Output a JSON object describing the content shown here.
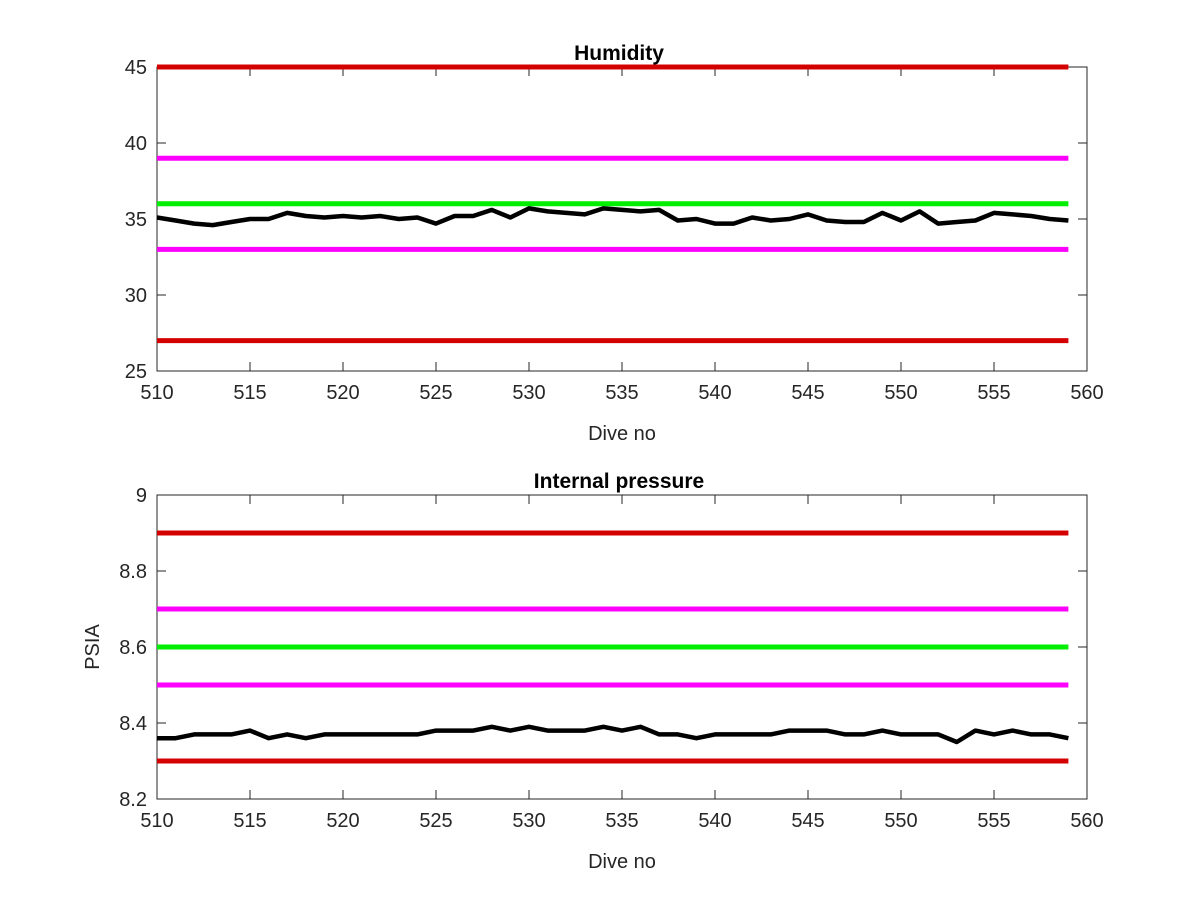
{
  "chart_data": [
    {
      "type": "line",
      "title": "Humidity",
      "xlabel": "Dive no",
      "ylabel": "",
      "xlim": [
        510,
        560
      ],
      "ylim": [
        25,
        45
      ],
      "xticks": [
        "510",
        "515",
        "520",
        "525",
        "530",
        "535",
        "540",
        "545",
        "550",
        "555",
        "560"
      ],
      "yticks": [
        "25",
        "30",
        "35",
        "40",
        "45"
      ],
      "grid": false,
      "reference_lines": [
        {
          "y": 45,
          "color": "#d40000"
        },
        {
          "y": 39,
          "color": "#ff00ff"
        },
        {
          "y": 36,
          "color": "#00ee00"
        },
        {
          "y": 33,
          "color": "#ff00ff"
        },
        {
          "y": 27,
          "color": "#d40000"
        }
      ],
      "series": [
        {
          "color": "#000000",
          "x": [
            510,
            511,
            512,
            513,
            514,
            515,
            516,
            517,
            518,
            519,
            520,
            521,
            522,
            523,
            524,
            525,
            526,
            527,
            528,
            529,
            530,
            531,
            532,
            533,
            534,
            535,
            536,
            537,
            538,
            539,
            540,
            541,
            542,
            543,
            544,
            545,
            546,
            547,
            548,
            549,
            550,
            551,
            552,
            553,
            554,
            555,
            556,
            557,
            558,
            559
          ],
          "y": [
            35.1,
            34.9,
            34.7,
            34.6,
            34.8,
            35.0,
            35.0,
            35.4,
            35.2,
            35.1,
            35.2,
            35.1,
            35.2,
            35.0,
            35.1,
            34.7,
            35.2,
            35.2,
            35.6,
            35.1,
            35.7,
            35.5,
            35.4,
            35.3,
            35.7,
            35.6,
            35.5,
            35.6,
            34.9,
            35.0,
            34.7,
            34.7,
            35.1,
            34.9,
            35.0,
            35.3,
            34.9,
            34.8,
            34.8,
            35.4,
            34.9,
            35.5,
            34.7,
            34.8,
            34.9,
            35.4,
            35.3,
            35.2,
            35.0,
            34.9
          ]
        }
      ]
    },
    {
      "type": "line",
      "title": "Internal pressure",
      "xlabel": "Dive no",
      "ylabel": "PSIA",
      "xlim": [
        510,
        560
      ],
      "ylim": [
        8.2,
        9.0
      ],
      "xticks": [
        "510",
        "515",
        "520",
        "525",
        "530",
        "535",
        "540",
        "545",
        "550",
        "555",
        "560"
      ],
      "yticks": [
        "8.2",
        "8.4",
        "8.6",
        "8.8",
        "9"
      ],
      "grid": false,
      "reference_lines": [
        {
          "y": 8.9,
          "color": "#d40000"
        },
        {
          "y": 8.7,
          "color": "#ff00ff"
        },
        {
          "y": 8.6,
          "color": "#00ee00"
        },
        {
          "y": 8.5,
          "color": "#ff00ff"
        },
        {
          "y": 8.3,
          "color": "#d40000"
        }
      ],
      "series": [
        {
          "color": "#000000",
          "x": [
            510,
            511,
            512,
            513,
            514,
            515,
            516,
            517,
            518,
            519,
            520,
            521,
            522,
            523,
            524,
            525,
            526,
            527,
            528,
            529,
            530,
            531,
            532,
            533,
            534,
            535,
            536,
            537,
            538,
            539,
            540,
            541,
            542,
            543,
            544,
            545,
            546,
            547,
            548,
            549,
            550,
            551,
            552,
            553,
            554,
            555,
            556,
            557,
            558,
            559
          ],
          "y": [
            8.36,
            8.36,
            8.37,
            8.37,
            8.37,
            8.38,
            8.36,
            8.37,
            8.36,
            8.37,
            8.37,
            8.37,
            8.37,
            8.37,
            8.37,
            8.38,
            8.38,
            8.38,
            8.39,
            8.38,
            8.39,
            8.38,
            8.38,
            8.38,
            8.39,
            8.38,
            8.39,
            8.37,
            8.37,
            8.36,
            8.37,
            8.37,
            8.37,
            8.37,
            8.38,
            8.38,
            8.38,
            8.37,
            8.37,
            8.38,
            8.37,
            8.37,
            8.37,
            8.35,
            8.38,
            8.37,
            8.38,
            8.37,
            8.37,
            8.36
          ]
        }
      ]
    }
  ]
}
